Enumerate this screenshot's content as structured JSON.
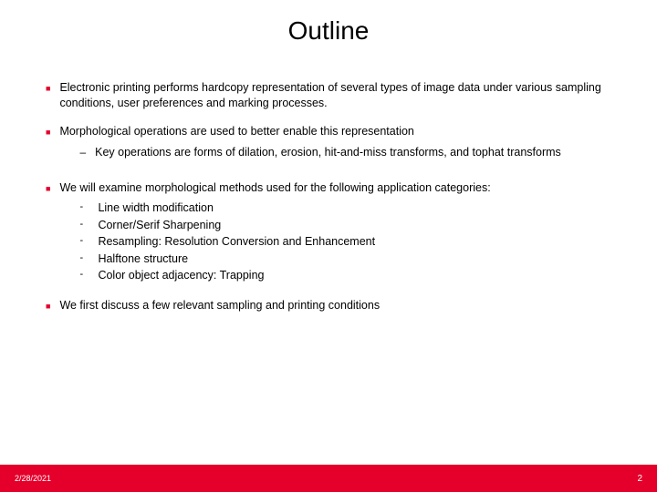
{
  "title": "Outline",
  "bullets": [
    {
      "text": "Electronic printing performs hardcopy representation of several types of image data under various sampling conditions, user preferences and marking processes."
    },
    {
      "text": "Morphological operations are used to better enable this representation",
      "sub": [
        "Key operations are forms of dilation, erosion, hit-and-miss transforms, and tophat transforms"
      ]
    },
    {
      "text": "We will examine morphological methods used for the following application categories:",
      "dashes": [
        "Line width modification",
        "Corner/Serif Sharpening",
        "Resampling: Resolution Conversion and Enhancement",
        "Halftone structure",
        "Color object adjacency: Trapping"
      ]
    },
    {
      "text": "We first discuss a few relevant sampling and printing conditions"
    }
  ],
  "footer": {
    "date": "2/28/2021",
    "page": "2"
  },
  "colors": {
    "accent": "#e4002b",
    "text": "#000000",
    "background": "#ffffff",
    "footer_text": "#ffffff"
  }
}
